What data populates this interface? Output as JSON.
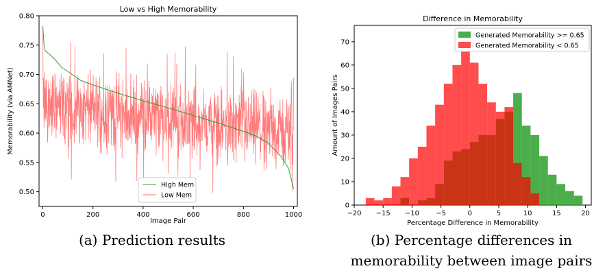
{
  "chart_data": [
    {
      "type": "line",
      "title": "Low vs High Memorability",
      "xlabel": "Image Pair",
      "ylabel": "Memorability (via AMNet)",
      "xlim": [
        -15,
        1015
      ],
      "ylim": [
        0.475,
        0.8
      ],
      "xticks": [
        "0",
        "200",
        "400",
        "600",
        "800",
        "1000"
      ],
      "yticks": [
        "0.50",
        "0.55",
        "0.60",
        "0.65",
        "0.70",
        "0.75",
        "0.80"
      ],
      "legend": "bottom-center",
      "grid": false,
      "series": [
        {
          "name": "High Mem",
          "color": "#2ca02c",
          "x": [
            0,
            5,
            10,
            25,
            50,
            75,
            100,
            150,
            200,
            300,
            400,
            500,
            600,
            700,
            800,
            850,
            900,
            950,
            980,
            1000
          ],
          "y": [
            0.783,
            0.75,
            0.74,
            0.735,
            0.725,
            0.712,
            0.705,
            0.69,
            0.682,
            0.668,
            0.655,
            0.643,
            0.63,
            0.617,
            0.603,
            0.595,
            0.583,
            0.56,
            0.54,
            0.505
          ]
        },
        {
          "name": "Low Mem",
          "color": "#ff6b6b",
          "x_range": [
            0,
            1000
          ],
          "y_range": [
            0.468,
            0.78
          ],
          "mean_range": [
            0.6,
            0.65
          ]
        }
      ]
    },
    {
      "type": "histogram",
      "title": "Difference in Memorability",
      "xlabel": "Percentage Difference in Memorability",
      "ylabel": "Amount of Images Pairs",
      "xlim": [
        -20,
        21
      ],
      "ylim": [
        0,
        77
      ],
      "xticks": [
        "−20",
        "−15",
        "−10",
        "−5",
        "0",
        "5",
        "10",
        "15",
        "20"
      ],
      "yticks": [
        "0",
        "10",
        "20",
        "30",
        "40",
        "50",
        "60",
        "70"
      ],
      "legend": "top-right",
      "series": [
        {
          "name": "Generated Memorability >= 0.65",
          "color": "#2ca02c",
          "bin_edges": [
            -18,
            -16.5,
            -15,
            -13.5,
            -12,
            -10.5,
            -9,
            -7.5,
            -6,
            -4.5,
            -3,
            -1.5,
            0,
            1.5,
            3,
            4.5,
            6,
            7.5,
            9,
            10.5,
            12,
            13.5,
            15,
            16.5,
            18,
            19.5
          ],
          "counts": [
            0,
            0,
            0,
            0,
            3,
            0,
            2,
            3,
            9,
            19,
            23,
            24,
            27,
            30,
            30,
            37,
            40,
            48,
            34,
            30,
            21,
            13,
            9,
            6,
            4
          ]
        },
        {
          "name": "Generated Memorability < 0.65",
          "color": "#ff0000",
          "bin_edges": [
            -18,
            -16.5,
            -15,
            -13.5,
            -12,
            -10.5,
            -9,
            -7.5,
            -6,
            -4.5,
            -3,
            -1.5,
            0,
            1.5,
            3,
            4.5,
            6,
            7.5,
            9,
            10.5,
            12,
            13.5,
            15,
            16.5,
            18,
            19.5
          ],
          "counts": [
            3,
            2,
            3,
            8,
            12,
            20,
            25,
            34,
            43,
            52,
            60,
            68,
            61,
            52,
            44,
            40,
            42,
            18,
            12,
            5,
            0,
            0,
            0,
            0,
            0
          ]
        }
      ]
    }
  ],
  "captions": {
    "a": "(a) Prediction results",
    "b_line1": "(b) Percentage differences in",
    "b_line2": "memorability between image pairs"
  }
}
